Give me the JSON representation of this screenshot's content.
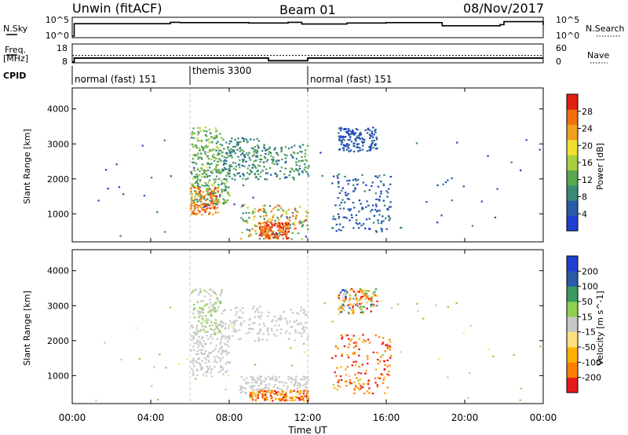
{
  "header": {
    "site": "Unwin (fitACF)",
    "beam": "Beam 01",
    "date": "08/Nov/2017"
  },
  "colors": {
    "power": [
      "#1f3fcf",
      "#2a5aa8",
      "#3a8a78",
      "#5aa850",
      "#a8d040",
      "#f0e030",
      "#f0a020",
      "#f07010",
      "#e02010"
    ],
    "velocity": [
      "#e41a1c",
      "#ff7f00",
      "#ffb000",
      "#ffe080",
      "#c8c8c8",
      "#90d050",
      "#3a9a60",
      "#2a5aa8",
      "#1f3fcf"
    ],
    "gray_guides": "#c8c8c8"
  },
  "chart_data": [
    {
      "type": "line",
      "id": "nsky-panel",
      "left_label": "N.Sky",
      "right_label": "N.Search",
      "left_ticks": [
        "10^5",
        "10^0"
      ],
      "right_ticks": [
        "10^5",
        "10^0"
      ],
      "ylim": [
        0,
        5
      ],
      "x": [
        0.0,
        0.1,
        4.5,
        5.0,
        5.5,
        6.0,
        9.0,
        11.0,
        11.7,
        14.0,
        16.0,
        18.8,
        18.85,
        21.8,
        22.0,
        24.0
      ],
      "y": [
        0.0,
        3.6,
        3.6,
        4.0,
        3.9,
        3.9,
        3.8,
        4.0,
        3.5,
        3.8,
        3.9,
        3.9,
        3.0,
        3.3,
        4.2,
        3.2
      ]
    },
    {
      "type": "line",
      "id": "freq-panel",
      "left_label_1": "Freq.",
      "left_label_2": "[MHz]",
      "right_label": "Nave",
      "left_ticks": [
        "18",
        "8"
      ],
      "right_ticks": [
        "60",
        "0"
      ],
      "ylim": [
        8,
        18
      ],
      "series": [
        {
          "name": "Freq",
          "x": [
            0.0,
            0.1,
            10.0,
            12.0,
            24.0
          ],
          "y": [
            8.0,
            10.4,
            8.8,
            10.4,
            10.4
          ]
        },
        {
          "name": "Nave",
          "x": [
            0.0,
            24.0
          ],
          "y": [
            12.0,
            12.0
          ]
        }
      ]
    },
    {
      "type": "text",
      "id": "cpid-panel",
      "label": "CPID",
      "modes": [
        {
          "start": 0,
          "label": "normal (fast) 151"
        },
        {
          "start": 6,
          "label": "themis 3300"
        },
        {
          "start": 12,
          "label": "normal (fast) 151"
        }
      ]
    },
    {
      "type": "scatter",
      "id": "power-panel",
      "ylabel": "Slant Range [km]",
      "yticks": [
        1000,
        2000,
        3000,
        4000
      ],
      "ylim": [
        200,
        4600
      ],
      "xlim": [
        0,
        24
      ],
      "colorbar": {
        "label": "Power [dB]",
        "ticks": [
          "4",
          "8",
          "12",
          "16",
          "20",
          "24",
          "28"
        ],
        "range": [
          0,
          32
        ]
      },
      "regions": [
        {
          "x": [
            6.0,
            7.4
          ],
          "r": [
            1000,
            1800
          ],
          "v": [
            22,
            30
          ]
        },
        {
          "x": [
            6.0,
            8.0
          ],
          "r": [
            1300,
            2300
          ],
          "v": [
            8,
            16
          ]
        },
        {
          "x": [
            6.0,
            7.6
          ],
          "r": [
            2200,
            3500
          ],
          "v": [
            8,
            18
          ]
        },
        {
          "x": [
            7.6,
            9.5
          ],
          "r": [
            2000,
            3200
          ],
          "v": [
            6,
            12
          ]
        },
        {
          "x": [
            9.0,
            12.0
          ],
          "r": [
            2000,
            3000
          ],
          "v": [
            6,
            14
          ]
        },
        {
          "x": [
            8.5,
            12.0
          ],
          "r": [
            300,
            1300
          ],
          "v": [
            6,
            28
          ]
        },
        {
          "x": [
            9.5,
            11.0
          ],
          "r": [
            300,
            800
          ],
          "v": [
            24,
            31
          ]
        },
        {
          "x": [
            13.2,
            16.2
          ],
          "r": [
            500,
            2200
          ],
          "v": [
            2,
            8
          ]
        },
        {
          "x": [
            13.5,
            15.5
          ],
          "r": [
            2800,
            3500
          ],
          "v": [
            2,
            8
          ]
        },
        {
          "x": [
            0.5,
            24.0
          ],
          "r": [
            300,
            3200
          ],
          "v": [
            2,
            10
          ]
        }
      ]
    },
    {
      "type": "scatter",
      "id": "velocity-panel",
      "ylabel": "Slant Range [km]",
      "yticks": [
        1000,
        2000,
        3000,
        4000
      ],
      "ylim": [
        200,
        4600
      ],
      "xlim": [
        0,
        24
      ],
      "colorbar": {
        "label": "Velocity [m s^-1]",
        "ticks": [
          "-200",
          "-100",
          "-50",
          "-15",
          "15",
          "50",
          "100",
          "200"
        ],
        "range": [
          -250,
          250
        ]
      },
      "regions": [
        {
          "x": [
            6.0,
            8.0
          ],
          "r": [
            1000,
            2200
          ],
          "v": [
            -14,
            14
          ]
        },
        {
          "x": [
            6.0,
            7.6
          ],
          "r": [
            2200,
            3500
          ],
          "v": [
            -14,
            60
          ]
        },
        {
          "x": [
            7.6,
            12.0
          ],
          "r": [
            2000,
            3000
          ],
          "v": [
            -14,
            14
          ]
        },
        {
          "x": [
            8.5,
            12.0
          ],
          "r": [
            500,
            1000
          ],
          "v": [
            -14,
            14
          ]
        },
        {
          "x": [
            9.0,
            12.0
          ],
          "r": [
            300,
            600
          ],
          "v": [
            -250,
            -60
          ]
        },
        {
          "x": [
            13.2,
            16.2
          ],
          "r": [
            500,
            2200
          ],
          "v": [
            -250,
            -100
          ]
        },
        {
          "x": [
            13.5,
            15.5
          ],
          "r": [
            2800,
            3500
          ],
          "v": [
            -250,
            200
          ]
        },
        {
          "x": [
            0.5,
            24.0
          ],
          "r": [
            300,
            3200
          ],
          "v": [
            -80,
            80
          ]
        }
      ]
    }
  ],
  "time_axis": {
    "label": "Time UT",
    "ticks": [
      {
        "v": 0,
        "label": "00:00"
      },
      {
        "v": 4,
        "label": "04:00"
      },
      {
        "v": 8,
        "label": "08:00"
      },
      {
        "v": 12,
        "label": "12:00"
      },
      {
        "v": 16,
        "label": "16:00"
      },
      {
        "v": 20,
        "label": "20:00"
      },
      {
        "v": 24,
        "label": "00:00"
      }
    ]
  }
}
